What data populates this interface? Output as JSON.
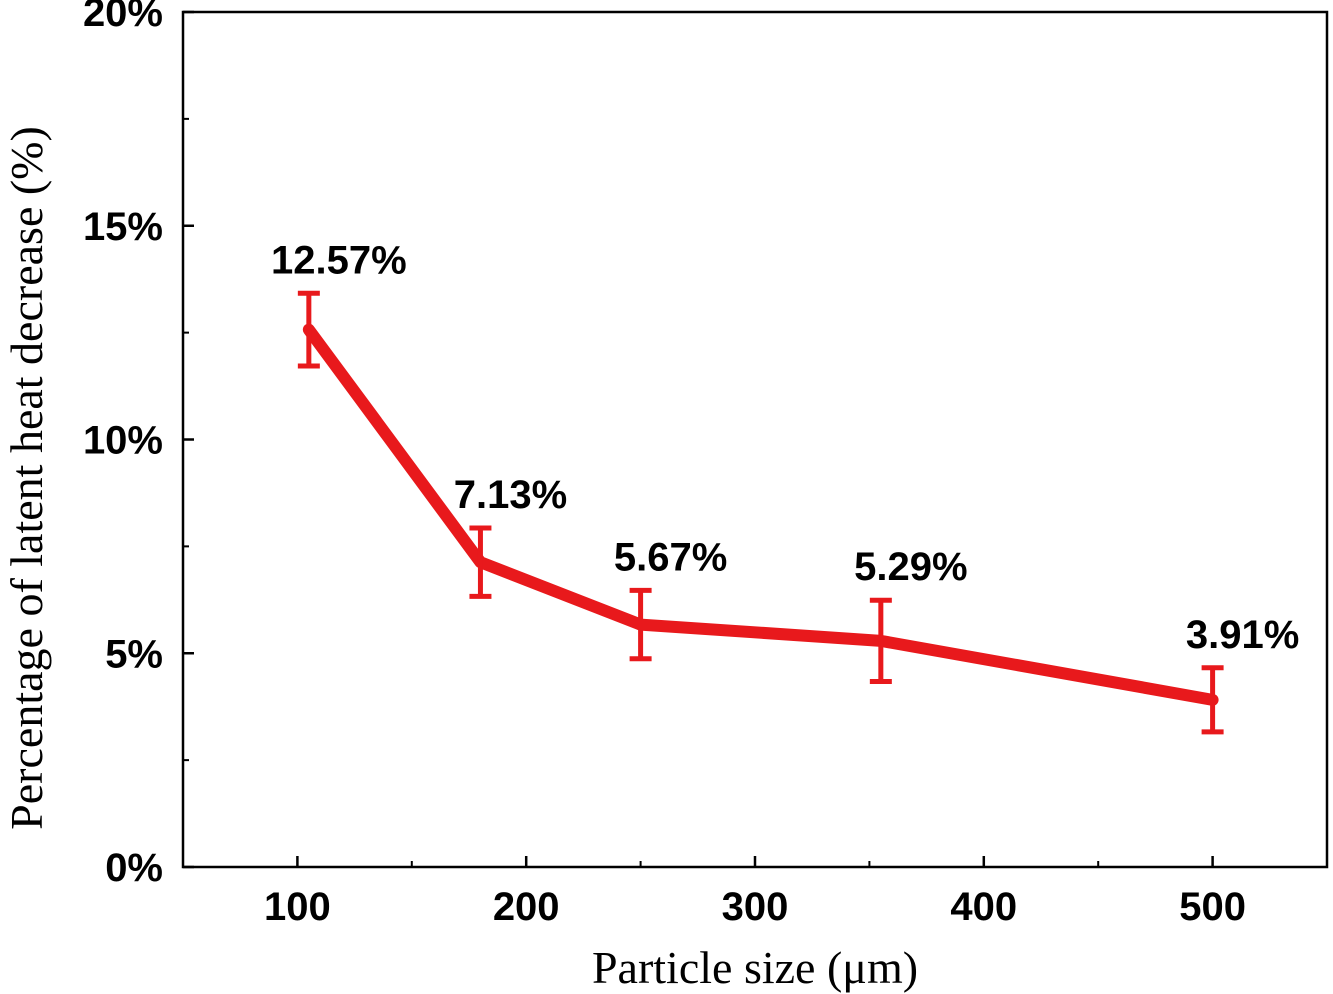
{
  "chart_data": {
    "type": "line",
    "xlabel": "Particle size (μm)",
    "ylabel": "Percentage of latent heat decrease (%)",
    "xlim": [
      50,
      550
    ],
    "ylim": [
      0,
      20
    ],
    "x_ticks": [
      100,
      200,
      300,
      400,
      500
    ],
    "x_tick_labels": [
      "100",
      "200",
      "300",
      "400",
      "500"
    ],
    "y_ticks": [
      0,
      5,
      10,
      15,
      20
    ],
    "y_tick_labels": [
      "0%",
      "5%",
      "10%",
      "15%",
      "20%"
    ],
    "grid": false,
    "line_color": "#e8191c",
    "series": [
      {
        "x": [
          105,
          180,
          250,
          355,
          500
        ],
        "y": [
          12.57,
          7.13,
          5.67,
          5.29,
          3.91
        ],
        "error": [
          0.85,
          0.8,
          0.8,
          0.95,
          0.75
        ],
        "labels": [
          "12.57%",
          "7.13%",
          "5.67%",
          "5.29%",
          "3.91%"
        ]
      }
    ]
  }
}
